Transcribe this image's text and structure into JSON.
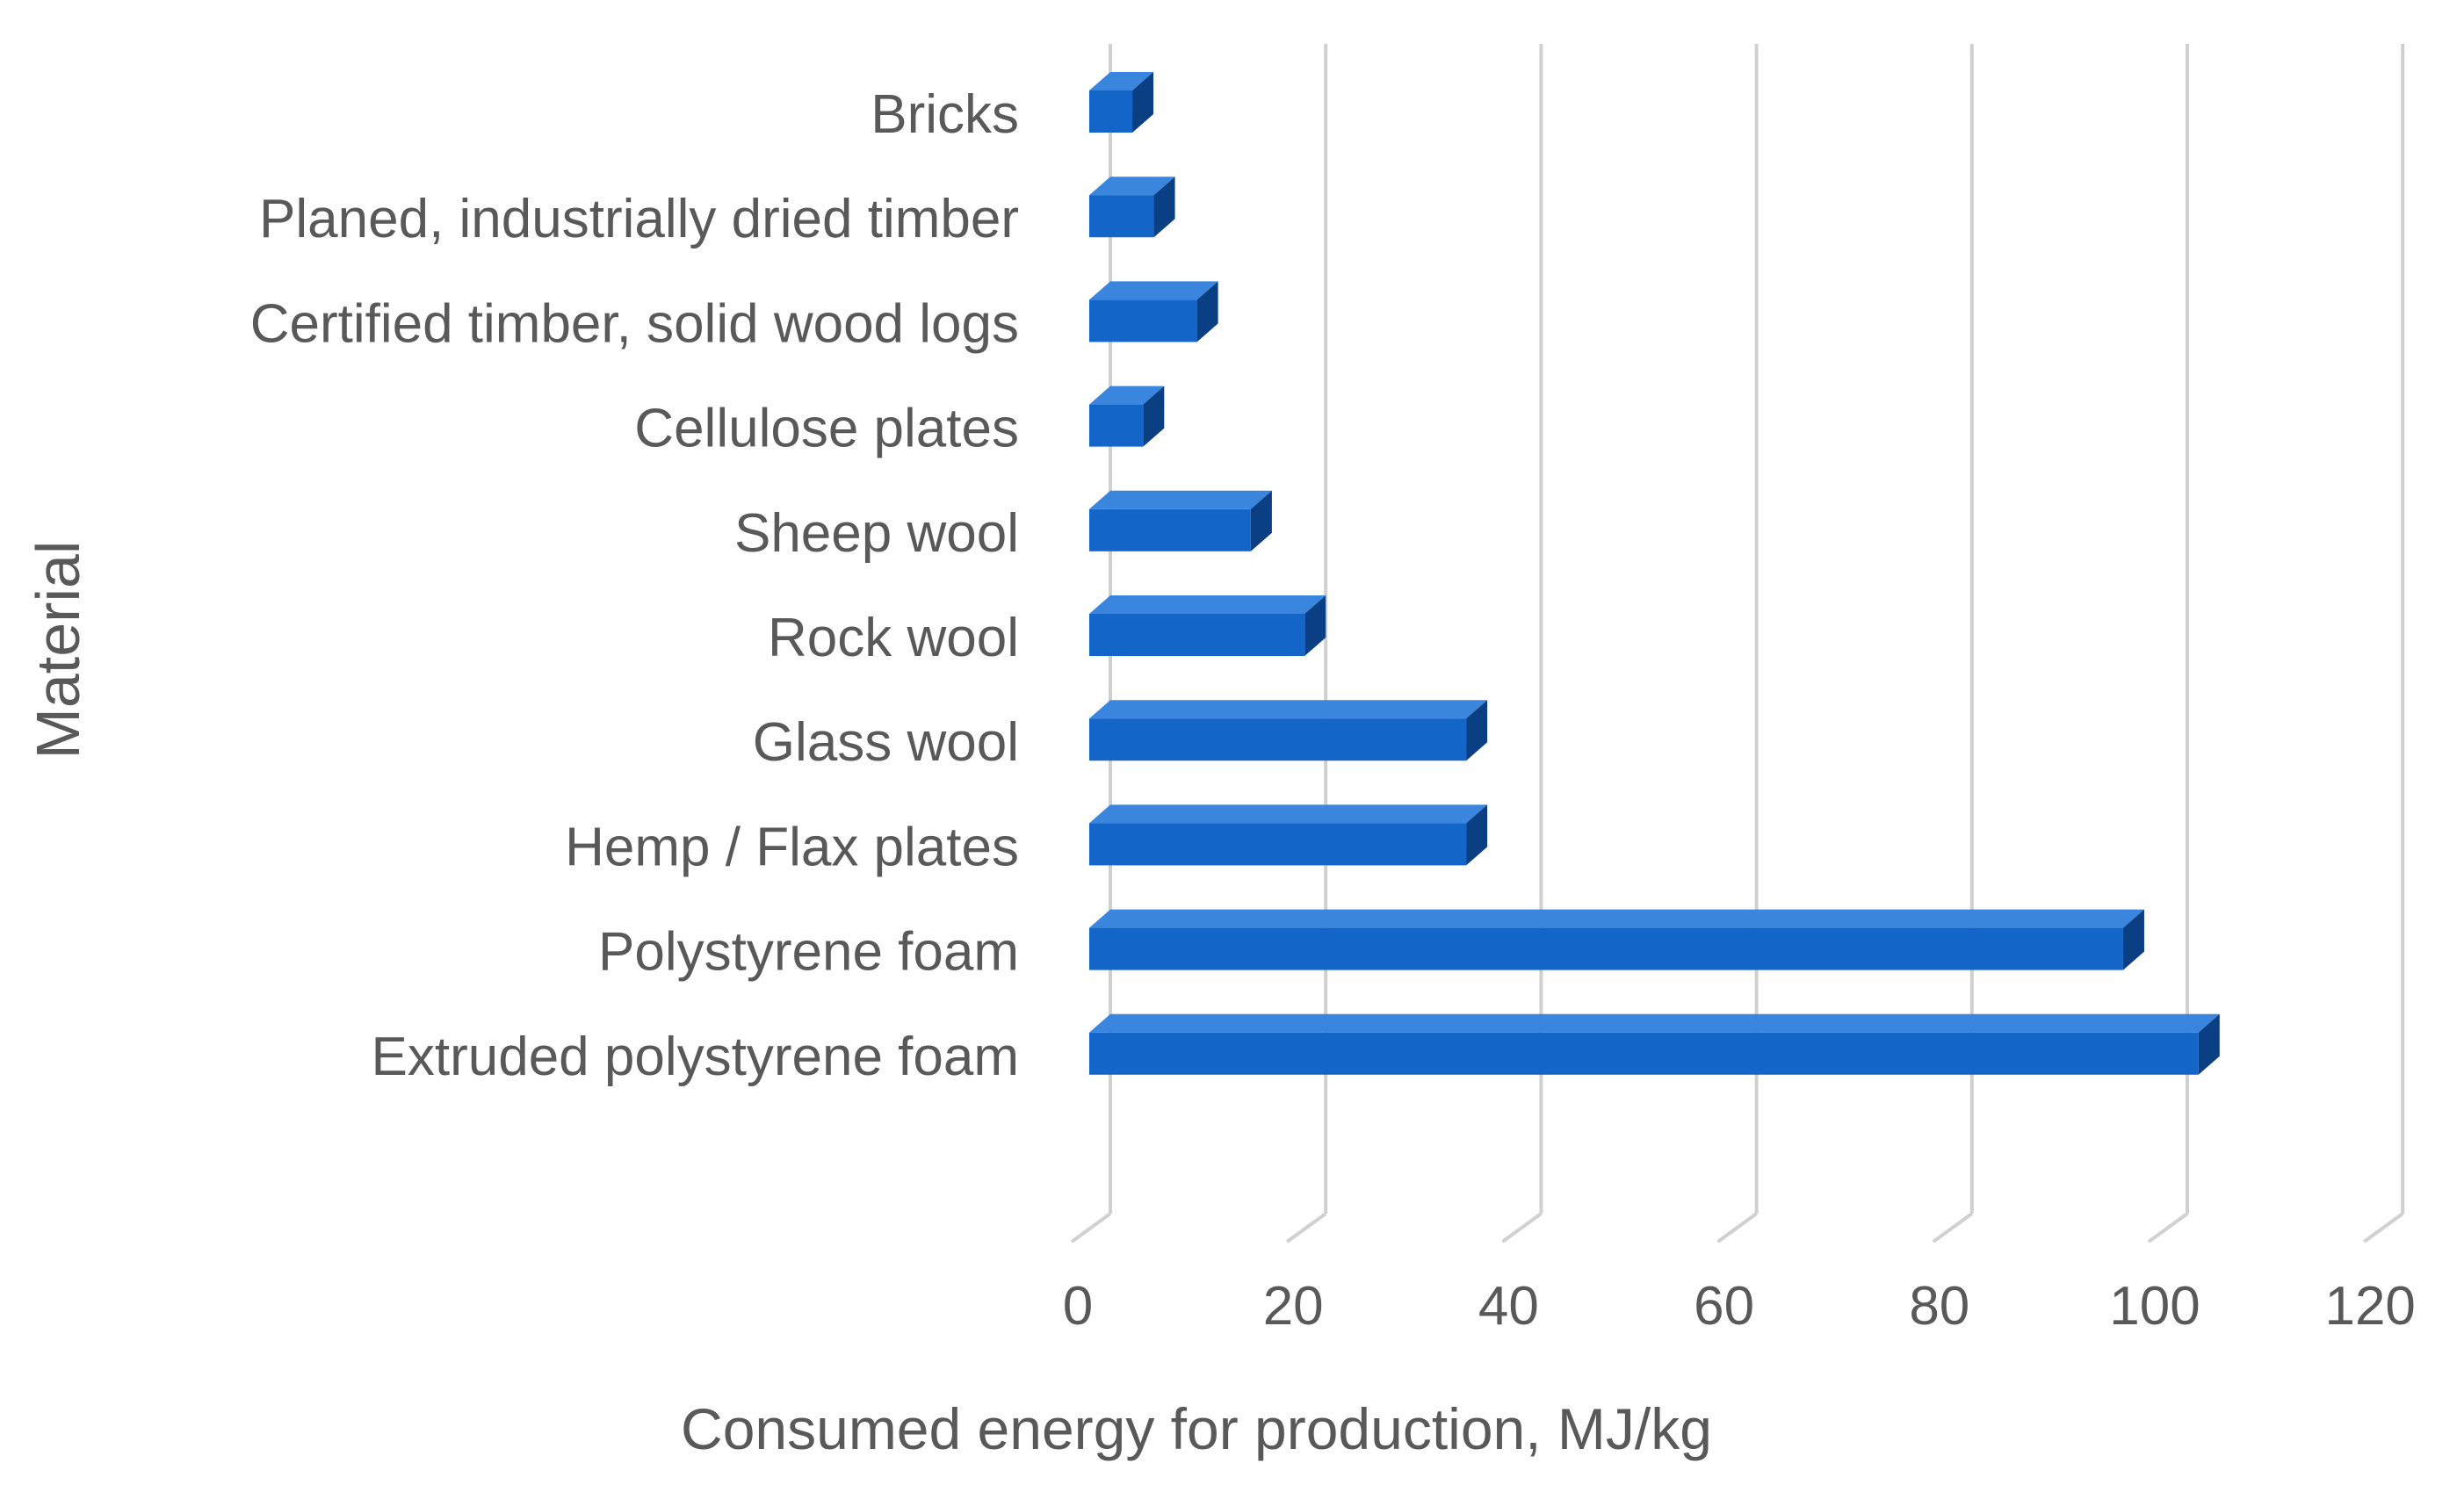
{
  "chart_data": {
    "type": "bar",
    "orientation": "horizontal",
    "style": "3d",
    "title": "",
    "xlabel": "Consumed energy for production, MJ/kg",
    "ylabel": "Material",
    "xlim": [
      0,
      120
    ],
    "xticks": [
      0,
      20,
      40,
      60,
      80,
      100,
      120
    ],
    "xtick_labels": [
      "0",
      "20",
      "40",
      "60",
      "80",
      "100",
      "120"
    ],
    "grid": true,
    "legend": "none",
    "categories": [
      "Bricks",
      "Planed, industrially dried timber",
      "Certified timber, solid wood logs",
      "Cellulose plates",
      "Sheep wool",
      "Rock wool",
      "Glass wool",
      "Hemp / Flax plates",
      "Polystyrene foam",
      "Extruded polystyrene foam"
    ],
    "values": [
      4,
      6,
      10,
      5,
      15,
      20,
      35,
      35,
      96,
      103
    ],
    "colors": {
      "bar_face": "#1366C8",
      "bar_side": "#0B3F83",
      "bar_top": "#3A86DE",
      "grid": "#D0D0D0",
      "text": "#595959"
    }
  }
}
